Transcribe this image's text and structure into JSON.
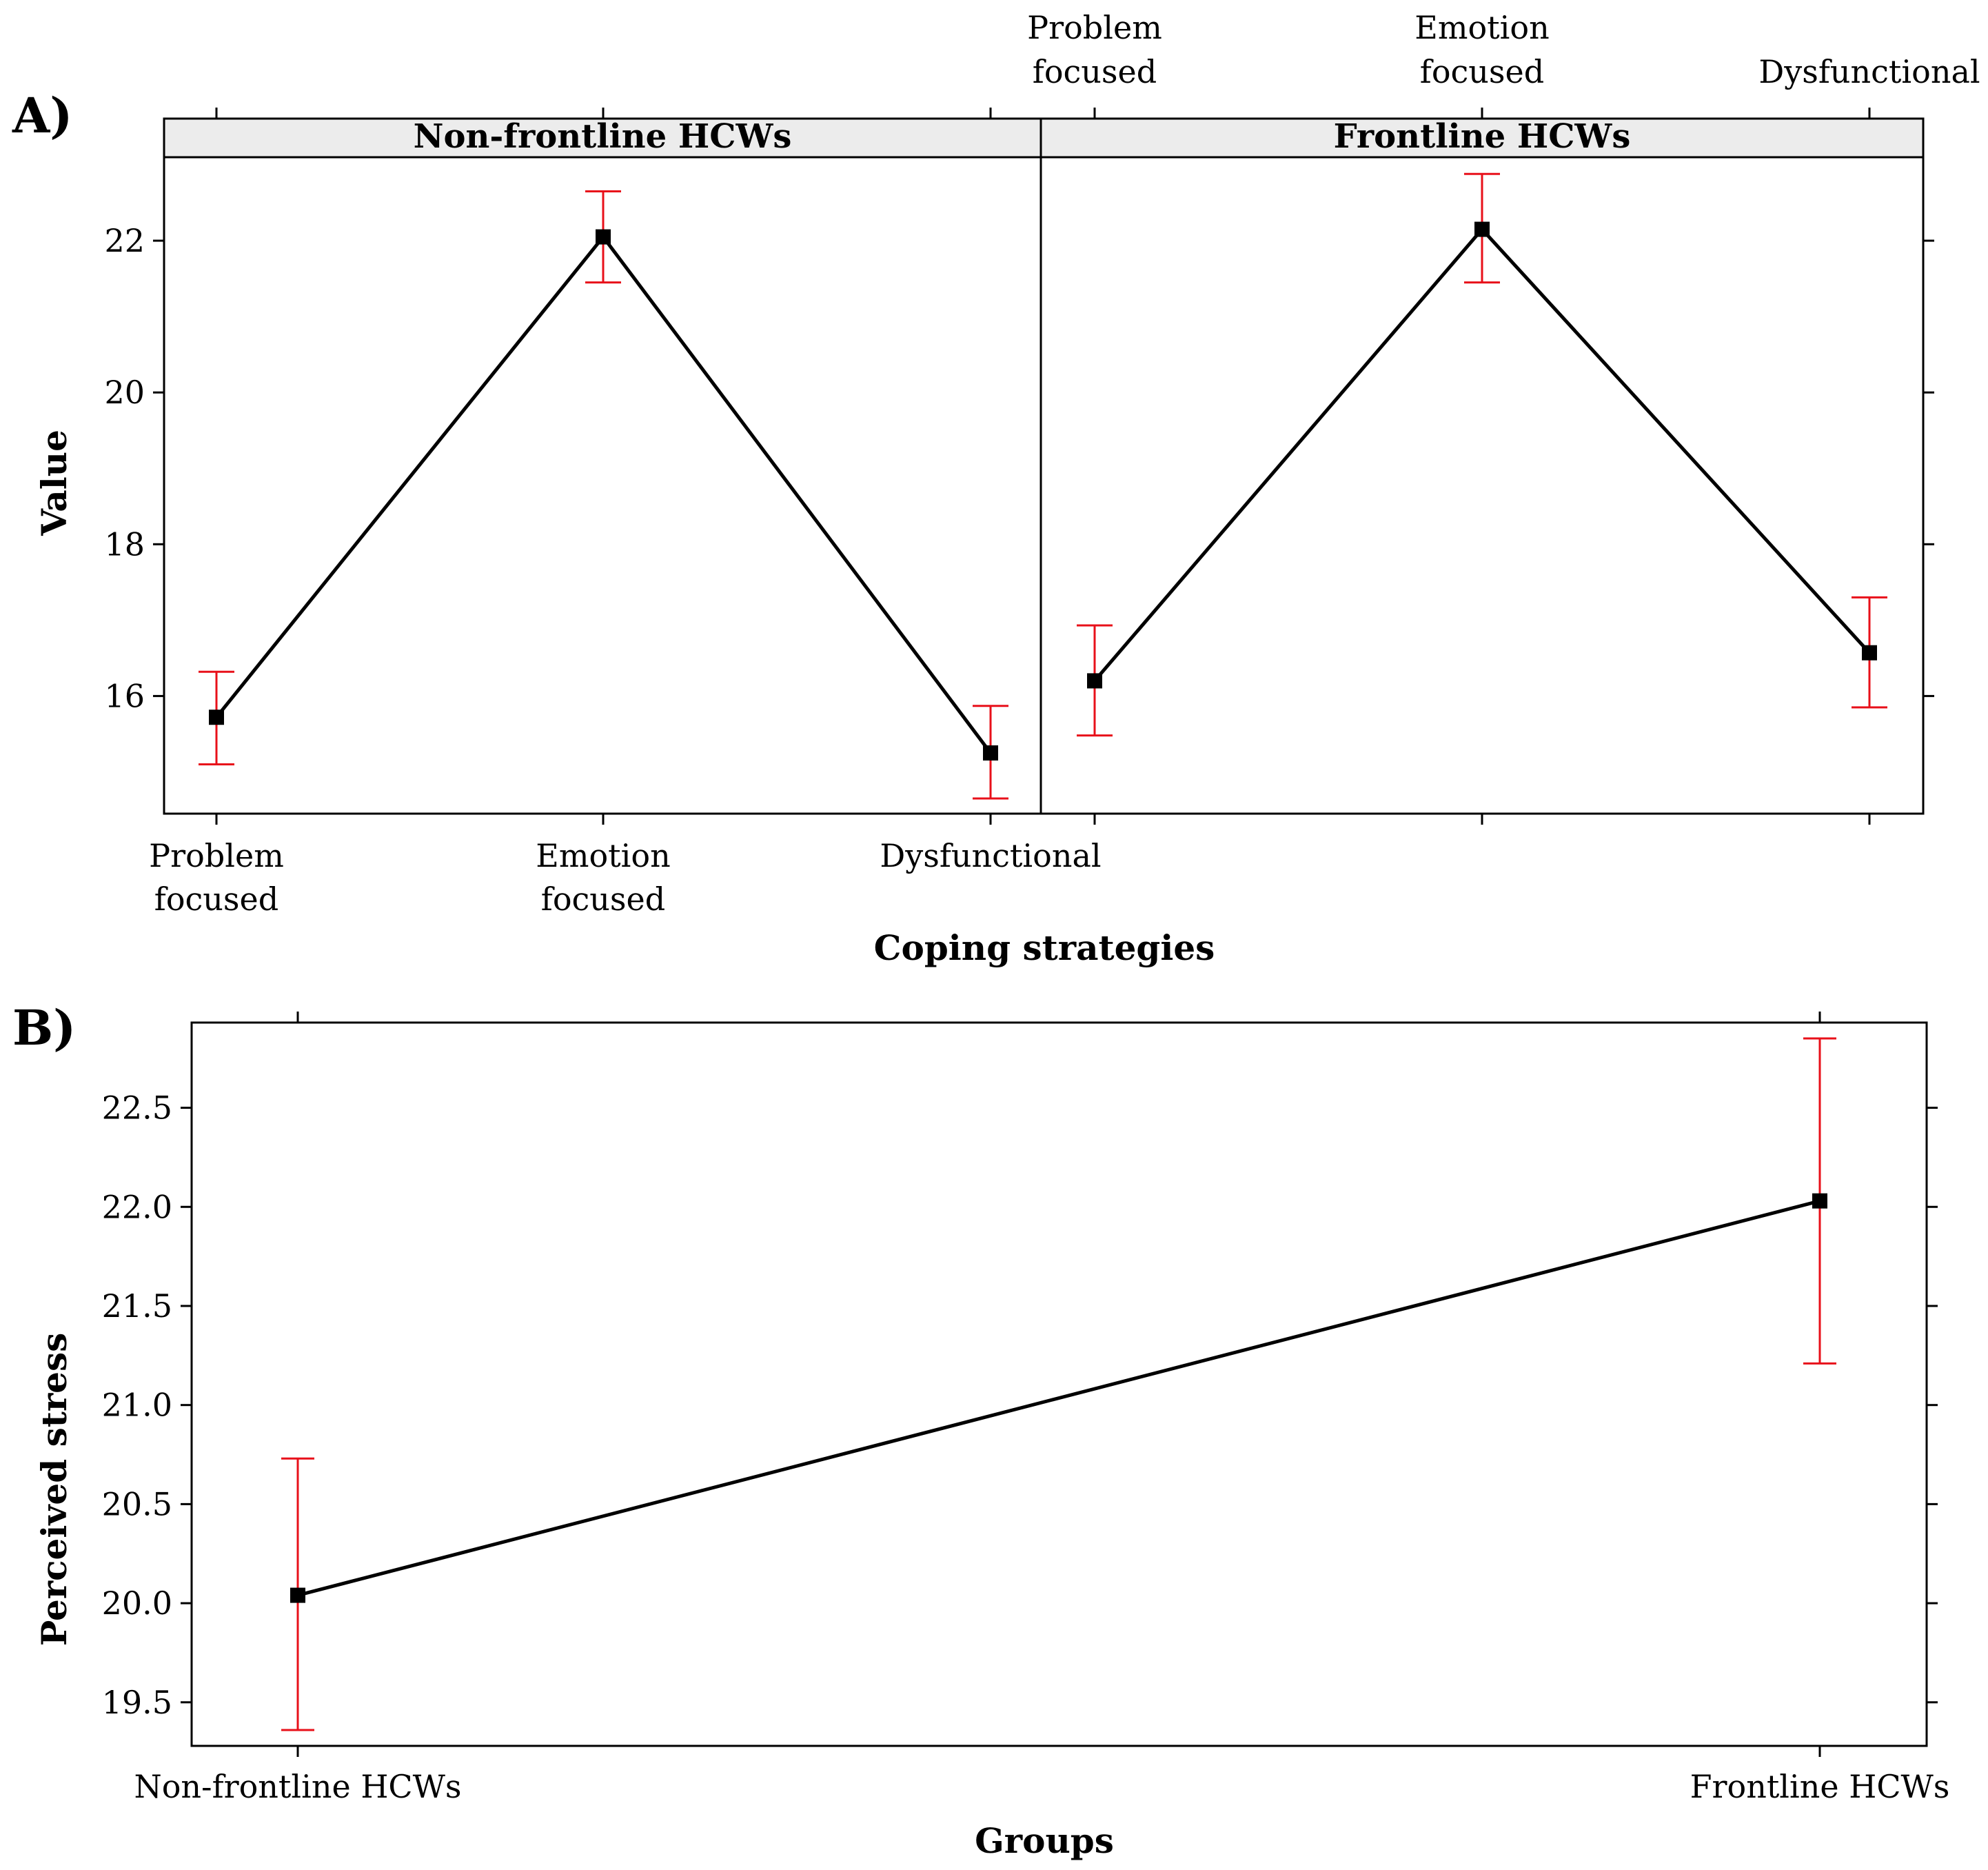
{
  "chart_data": [
    {
      "panel_tag": "A)",
      "type": "line",
      "ylabel": "Value",
      "xlabel": "Coping strategies",
      "categories": [
        {
          "line1": "Problem",
          "line2": "focused"
        },
        {
          "line1": "Emotion",
          "line2": "focused"
        },
        {
          "line1": "Dysfunctional",
          "line2": ""
        }
      ],
      "ylim": [
        14.45,
        23.1
      ],
      "yticks": [
        "16",
        "18",
        "20",
        "22"
      ],
      "ytick_values": [
        16,
        18,
        20,
        22
      ],
      "colors": {
        "line": "#000000",
        "errorbar": "#e8101a",
        "strip": "#ececec"
      },
      "panels": [
        {
          "name": "Non-frontline HCWs",
          "values": [
            15.72,
            22.05,
            15.25
          ],
          "lower": [
            15.1,
            21.45,
            14.65
          ],
          "upper": [
            16.32,
            22.65,
            15.87
          ]
        },
        {
          "name": "Frontline HCWs",
          "values": [
            16.2,
            22.15,
            16.57
          ],
          "lower": [
            15.48,
            21.45,
            15.85
          ],
          "upper": [
            16.93,
            22.88,
            17.3
          ]
        }
      ]
    },
    {
      "panel_tag": "B)",
      "type": "line",
      "ylabel": "Perceived stress",
      "xlabel": "Groups",
      "categories": [
        "Non-frontline HCWs",
        "Frontline HCWs"
      ],
      "ylim": [
        19.28,
        22.93
      ],
      "yticks": [
        "19.5",
        "20.0",
        "20.5",
        "21.0",
        "21.5",
        "22.0",
        "22.5"
      ],
      "ytick_values": [
        19.5,
        20.0,
        20.5,
        21.0,
        21.5,
        22.0,
        22.5
      ],
      "values": [
        20.04,
        22.03
      ],
      "lower": [
        19.36,
        21.21
      ],
      "upper": [
        20.73,
        22.85
      ],
      "colors": {
        "line": "#000000",
        "errorbar": "#e8101a"
      }
    }
  ]
}
